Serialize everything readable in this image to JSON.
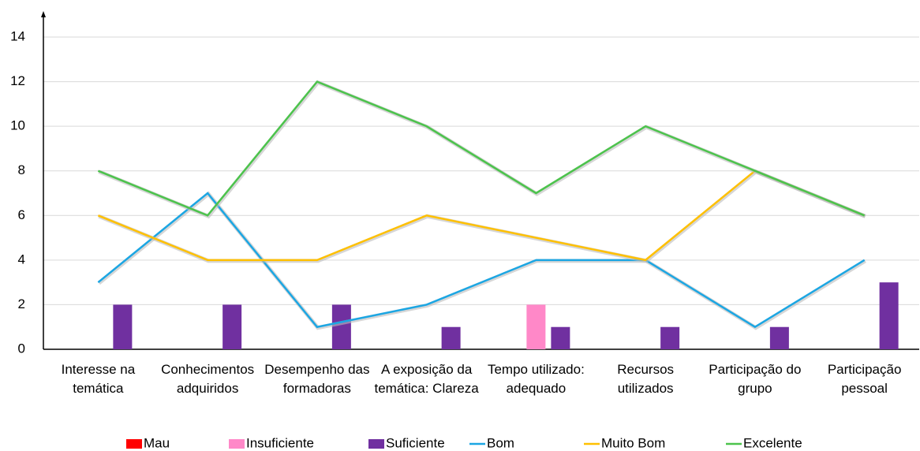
{
  "chart_data": {
    "type": "bar-line",
    "categories": [
      "Interesse na temática",
      "Conhecimentos adquiridos",
      "Desempenho das formadoras",
      "A exposição da temática: Clareza",
      "Tempo utilizado: adequado",
      "Recursos utilizados",
      "Participação do grupo",
      "Participação pessoal"
    ],
    "series": [
      {
        "name": "Mau",
        "type": "bar",
        "color": "#ff0000",
        "values": [
          0,
          0,
          0,
          0,
          0,
          0,
          0,
          0
        ]
      },
      {
        "name": "Insuficiente",
        "type": "bar",
        "color": "#ff88c8",
        "values": [
          0,
          0,
          0,
          0,
          2,
          0,
          0,
          0
        ]
      },
      {
        "name": "Suficiente",
        "type": "bar",
        "color": "#7030a0",
        "values": [
          2,
          2,
          2,
          1,
          1,
          1,
          1,
          3
        ]
      },
      {
        "name": "Bom",
        "type": "line",
        "color": "#1ba6e3",
        "values": [
          3,
          7,
          1,
          2,
          4,
          4,
          1,
          4
        ]
      },
      {
        "name": "Muito Bom",
        "type": "line",
        "color": "#ffc000",
        "values": [
          6,
          4,
          4,
          6,
          5,
          4,
          8,
          6
        ]
      },
      {
        "name": "Excelente",
        "type": "line",
        "color": "#4cc34c",
        "values": [
          8,
          6,
          12,
          10,
          7,
          10,
          8,
          6
        ]
      }
    ],
    "ylim": [
      0,
      14
    ],
    "yticks": [
      0,
      2,
      4,
      6,
      8,
      10,
      12,
      14
    ],
    "grid": true,
    "legend": "bottom"
  }
}
